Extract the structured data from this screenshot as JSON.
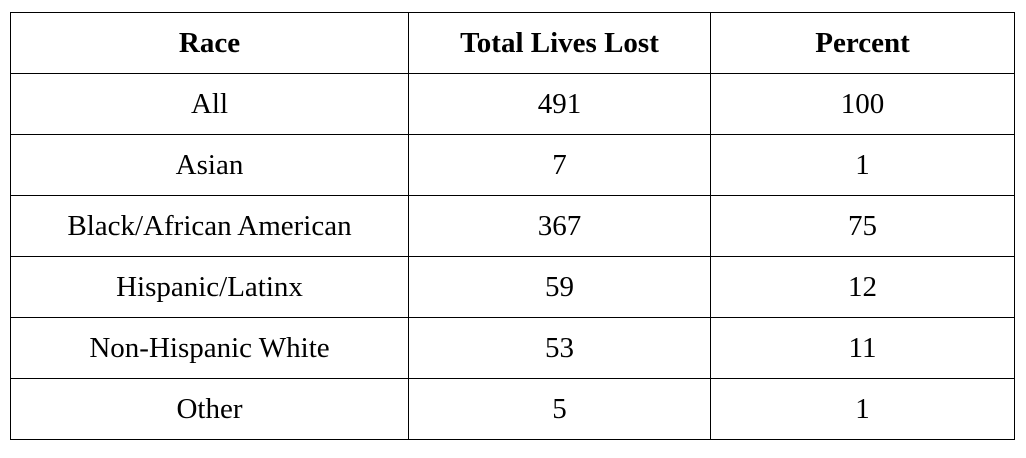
{
  "table": {
    "header": [
      "Race",
      "Total Lives Lost",
      "Percent"
    ],
    "rows": [
      [
        "All",
        491,
        100
      ],
      [
        "Asian",
        7,
        1
      ],
      [
        "Black/African American",
        367,
        75
      ],
      [
        "Hispanic/Latinx",
        59,
        12
      ],
      [
        "Non-Hispanic White",
        53,
        11
      ],
      [
        "Other",
        5,
        1
      ]
    ]
  }
}
